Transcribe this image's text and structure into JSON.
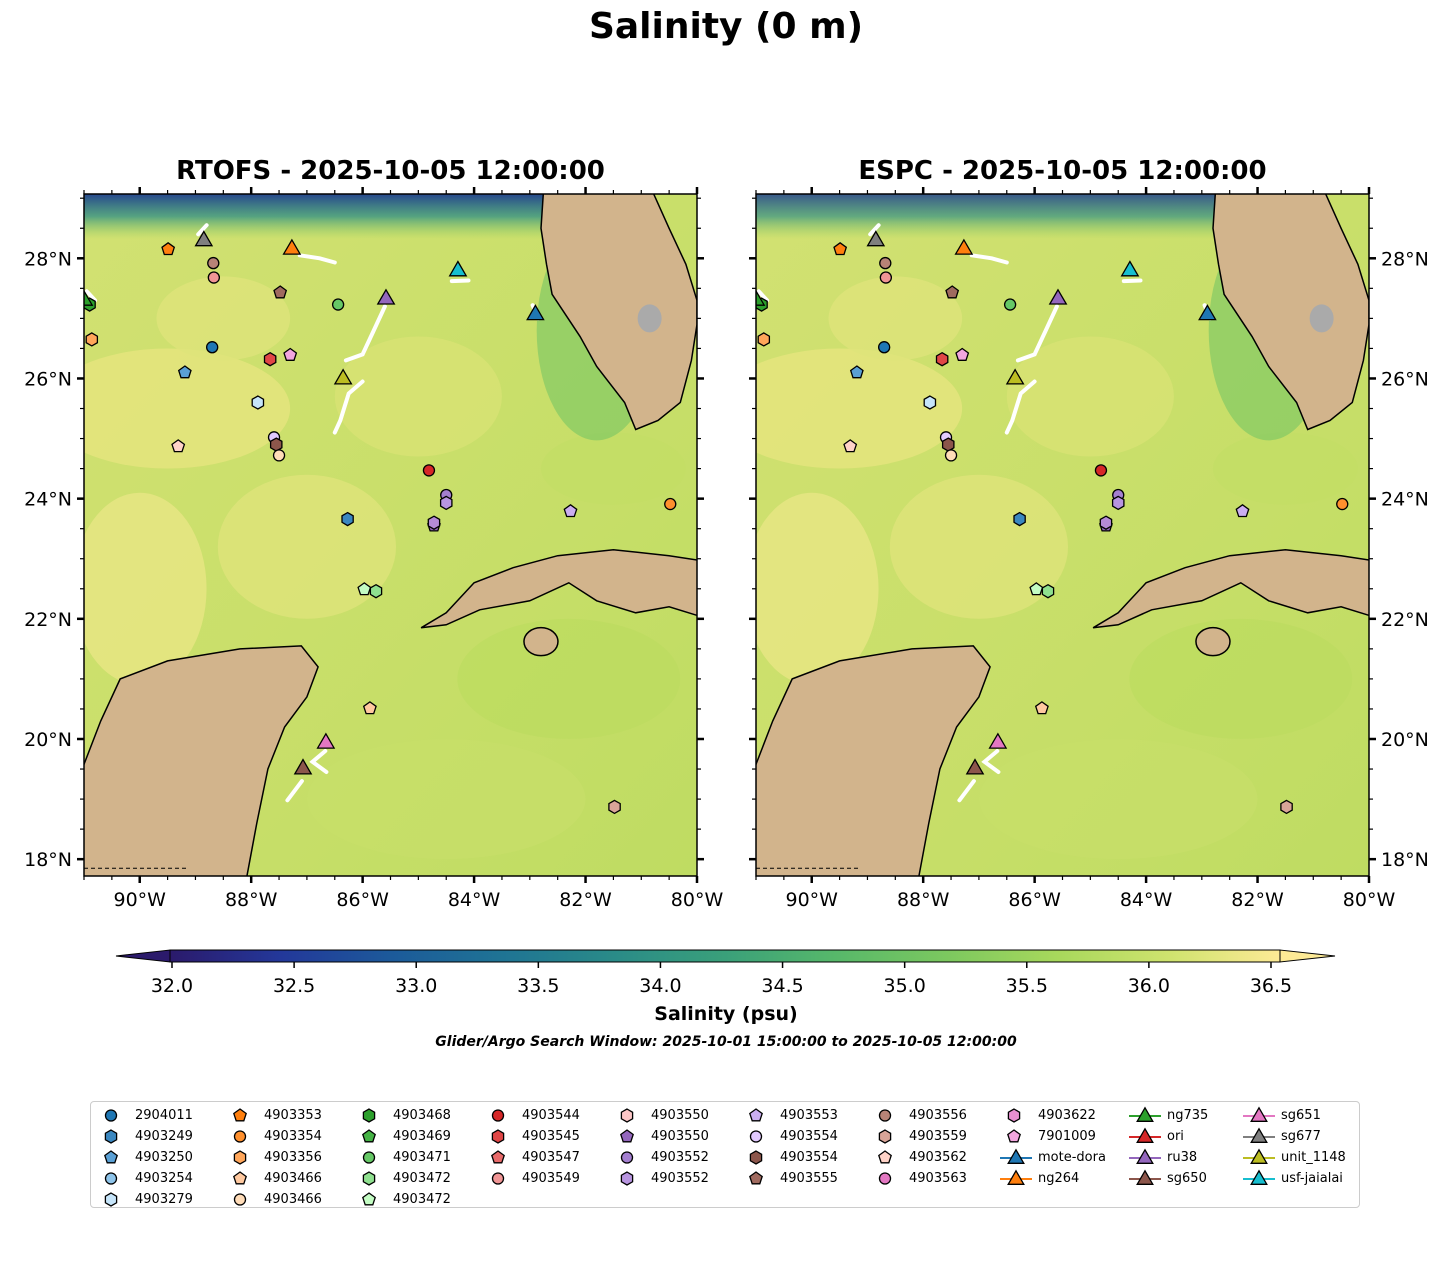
{
  "figure_title": "Salinity (0 m)",
  "chart_data": {
    "type": "map",
    "panels": [
      {
        "title": "RTOFS - 2025-10-05 12:00:00",
        "lat_label_side": "left"
      },
      {
        "title": "ESPC - 2025-10-05 12:00:00",
        "lat_label_side": "right"
      }
    ],
    "lon_range": [
      -91,
      -80
    ],
    "lat_range": [
      17.72,
      29.07
    ],
    "lon_ticks": [
      -90,
      -88,
      -86,
      -84,
      -82,
      -80
    ],
    "lon_tick_labels": [
      "90°W",
      "88°W",
      "86°W",
      "84°W",
      "82°W",
      "80°W"
    ],
    "lat_ticks": [
      18,
      20,
      22,
      24,
      26,
      28
    ],
    "lat_tick_labels": [
      "18°N",
      "20°N",
      "22°N",
      "24°N",
      "26°N",
      "28°N"
    ],
    "colorbar": {
      "label": "Salinity (psu)",
      "range": [
        32.0,
        36.5
      ],
      "extend": "both",
      "ticks": [
        32.0,
        32.5,
        33.0,
        33.5,
        34.0,
        34.5,
        35.0,
        35.5,
        36.0,
        36.5
      ],
      "tick_labels": [
        "32.0",
        "32.5",
        "33.0",
        "33.5",
        "34.0",
        "34.5",
        "35.0",
        "35.5",
        "36.0",
        "36.5"
      ],
      "colors": [
        "#2b1a6b",
        "#23389a",
        "#1c5a9a",
        "#1f7494",
        "#2a8b88",
        "#3aa07a",
        "#57b86a",
        "#7cc85f",
        "#a8d85c",
        "#cfe36e",
        "#fdea96"
      ]
    },
    "search_window_note": "Glider/Argo Search Window: 2025-10-01 15:00:00 to 2025-10-05 12:00:00",
    "markers": [
      {
        "label": "2904011",
        "shape": "circle",
        "color": "#1f77b4",
        "lon": -88.7,
        "lat": 26.52
      },
      {
        "label": "4903249",
        "shape": "hexagon",
        "color": "#3a87c0",
        "lon": -86.27,
        "lat": 23.66
      },
      {
        "label": "4903250",
        "shape": "pentagon",
        "color": "#5aa0d5",
        "lon": -89.19,
        "lat": 26.1
      },
      {
        "label": "4903279",
        "shape": "hexagon",
        "color": "#c6e5fa",
        "lon": -87.88,
        "lat": 25.6
      },
      {
        "label": "4903353",
        "shape": "pentagon",
        "color": "#ff7f0e",
        "lon": -89.49,
        "lat": 28.15
      },
      {
        "label": "4903354",
        "shape": "circle",
        "color": "#ff902e",
        "lon": -80.48,
        "lat": 23.91
      },
      {
        "label": "4903356",
        "shape": "hexagon",
        "color": "#ffa65a",
        "lon": -90.86,
        "lat": 26.65
      },
      {
        "label": "4903466",
        "shape": "pentagon",
        "color": "#ffc9a0",
        "lon": -85.87,
        "lat": 20.51
      },
      {
        "label": "4903468",
        "shape": "hexagon",
        "color": "#2ca02c",
        "lon": -90.9,
        "lat": 27.23
      },
      {
        "label": "4903471",
        "shape": "circle",
        "color": "#66c866",
        "lon": -86.44,
        "lat": 27.23
      },
      {
        "label": "4903472",
        "shape": "hexagon",
        "color": "#8fe08f",
        "lon": -85.76,
        "lat": 22.46
      },
      {
        "label": "4903472",
        "shape": "pentagon",
        "color": "#c3fcc3",
        "lon": -85.97,
        "lat": 22.49
      },
      {
        "label": "4903544",
        "shape": "circle",
        "color": "#d62728",
        "lon": -84.81,
        "lat": 24.47
      },
      {
        "label": "4903545",
        "shape": "hexagon",
        "color": "#e04646",
        "lon": -87.66,
        "lat": 26.32
      },
      {
        "label": "4903549",
        "shape": "circle",
        "color": "#f09595",
        "lon": -88.67,
        "lat": 27.68
      },
      {
        "label": "4903554",
        "shape": "circle",
        "color": "#e2caff",
        "lon": -87.59,
        "lat": 25.02
      },
      {
        "label": "4903554",
        "shape": "hexagon",
        "color": "#8c564b",
        "lon": -87.55,
        "lat": 24.9
      },
      {
        "label": "4903466",
        "shape": "circle",
        "color": "#ffdcb8",
        "lon": -87.5,
        "lat": 24.72
      },
      {
        "label": "4903550",
        "shape": "pentagon",
        "color": "#9467bd",
        "lon": -84.72,
        "lat": 23.55
      },
      {
        "label": "4903552",
        "shape": "circle",
        "color": "#a47fd0",
        "lon": -84.5,
        "lat": 24.06
      },
      {
        "label": "4903552",
        "shape": "hexagon",
        "color": "#b895e0",
        "lon": -84.5,
        "lat": 23.93
      },
      {
        "label": "4903553",
        "shape": "pentagon",
        "color": "#cbaef0",
        "lon": -82.27,
        "lat": 23.79
      },
      {
        "label": "4903555",
        "shape": "pentagon",
        "color": "#a06a5f",
        "lon": -87.48,
        "lat": 27.43
      },
      {
        "label": "4903556",
        "shape": "circle",
        "color": "#b88377",
        "lon": -88.68,
        "lat": 27.92
      },
      {
        "label": "4903559",
        "shape": "hexagon",
        "color": "#d9a598",
        "lon": -81.48,
        "lat": 18.87
      },
      {
        "label": "4903562",
        "shape": "pentagon",
        "color": "#ffd3c8",
        "lon": -89.31,
        "lat": 24.87
      },
      {
        "label": "4903622",
        "shape": "hexagon",
        "color": "#b58ad6",
        "lon": -84.72,
        "lat": 23.6
      },
      {
        "label": "7901009",
        "shape": "pentagon",
        "color": "#f2a6de",
        "lon": -87.3,
        "lat": 26.39
      },
      {
        "label": "ng264",
        "shape": "triangle",
        "color": "#ff7f0e",
        "lon": -87.27,
        "lat": 28.18
      },
      {
        "label": "sg677",
        "shape": "triangle",
        "color": "#7f7f7f",
        "lon": -88.85,
        "lat": 28.32
      },
      {
        "label": "ru38",
        "shape": "triangle",
        "color": "#9467bd",
        "lon": -85.58,
        "lat": 27.35
      },
      {
        "label": "unit_1148",
        "shape": "triangle",
        "color": "#bcbd22",
        "lon": -86.35,
        "lat": 26.02
      },
      {
        "label": "usf-jaialai",
        "shape": "triangle",
        "color": "#17becf",
        "lon": -84.29,
        "lat": 27.82
      },
      {
        "label": "mote-dora",
        "shape": "triangle",
        "color": "#1f77b4",
        "lon": -82.9,
        "lat": 27.09
      },
      {
        "label": "sg651",
        "shape": "triangle",
        "color": "#e377c2",
        "lon": -86.66,
        "lat": 19.96
      },
      {
        "label": "sg650",
        "shape": "triangle",
        "color": "#8c564b",
        "lon": -87.07,
        "lat": 19.53
      },
      {
        "label": "ng735",
        "shape": "triangle",
        "color": "#2ca02c",
        "lon": -91.0,
        "lat": 27.33
      }
    ],
    "glider_tracks": [
      [
        [
          -87.13,
          28.05
        ],
        [
          -86.77,
          28.0
        ],
        [
          -86.5,
          27.93
        ]
      ],
      [
        [
          -85.6,
          27.2
        ],
        [
          -85.8,
          26.8
        ],
        [
          -86.0,
          26.4
        ],
        [
          -86.3,
          26.3
        ]
      ],
      [
        [
          -86.0,
          25.95
        ],
        [
          -86.25,
          25.75
        ],
        [
          -86.4,
          25.3
        ],
        [
          -86.5,
          25.1
        ]
      ],
      [
        [
          -84.4,
          27.62
        ],
        [
          -84.1,
          27.63
        ]
      ],
      [
        [
          -82.95,
          27.22
        ],
        [
          -82.85,
          27.0
        ]
      ],
      [
        [
          -86.67,
          19.8
        ],
        [
          -86.9,
          19.62
        ],
        [
          -86.65,
          19.45
        ]
      ],
      [
        [
          -87.09,
          19.3
        ],
        [
          -87.35,
          18.98
        ]
      ],
      [
        [
          -88.95,
          28.4
        ],
        [
          -88.8,
          28.55
        ]
      ],
      [
        [
          -90.95,
          27.45
        ],
        [
          -90.8,
          27.3
        ]
      ]
    ]
  },
  "legend": {
    "columns": [
      [
        {
          "label": "2904011",
          "shape": "circle",
          "color": "#1f77b4"
        },
        {
          "label": "4903249",
          "shape": "hexagon",
          "color": "#3a87c0"
        },
        {
          "label": "4903250",
          "shape": "pentagon",
          "color": "#5aa0d5"
        },
        {
          "label": "4903254",
          "shape": "circle",
          "color": "#8ec4ea"
        },
        {
          "label": "4903279",
          "shape": "hexagon",
          "color": "#c6e5fa"
        }
      ],
      [
        {
          "label": "4903353",
          "shape": "pentagon",
          "color": "#ff7f0e"
        },
        {
          "label": "4903354",
          "shape": "circle",
          "color": "#ff902e"
        },
        {
          "label": "4903356",
          "shape": "hexagon",
          "color": "#ffa65a"
        },
        {
          "label": "4903466",
          "shape": "pentagon",
          "color": "#ffc9a0"
        },
        {
          "label": "4903466",
          "shape": "circle",
          "color": "#ffdcb8"
        }
      ],
      [
        {
          "label": "4903468",
          "shape": "hexagon",
          "color": "#2ca02c"
        },
        {
          "label": "4903469",
          "shape": "pentagon",
          "color": "#45b345"
        },
        {
          "label": "4903471",
          "shape": "circle",
          "color": "#66c866"
        },
        {
          "label": "4903472",
          "shape": "hexagon",
          "color": "#8fe08f"
        },
        {
          "label": "4903472",
          "shape": "pentagon",
          "color": "#c3fcc3"
        }
      ],
      [
        {
          "label": "4903544",
          "shape": "circle",
          "color": "#d62728"
        },
        {
          "label": "4903545",
          "shape": "hexagon",
          "color": "#e04646"
        },
        {
          "label": "4903547",
          "shape": "pentagon",
          "color": "#e86a6a"
        },
        {
          "label": "4903549",
          "shape": "circle",
          "color": "#f09595"
        }
      ],
      [
        {
          "label": "4903550",
          "shape": "hexagon",
          "color": "#fcc6c6"
        },
        {
          "label": "4903550",
          "shape": "pentagon",
          "color": "#9467bd"
        },
        {
          "label": "4903552",
          "shape": "circle",
          "color": "#a47fd0"
        },
        {
          "label": "4903552",
          "shape": "hexagon",
          "color": "#b895e0"
        }
      ],
      [
        {
          "label": "4903553",
          "shape": "pentagon",
          "color": "#cbaef0"
        },
        {
          "label": "4903554",
          "shape": "circle",
          "color": "#e2caff"
        },
        {
          "label": "4903554",
          "shape": "hexagon",
          "color": "#8c564b"
        },
        {
          "label": "4903555",
          "shape": "pentagon",
          "color": "#a06a5f"
        }
      ],
      [
        {
          "label": "4903556",
          "shape": "circle",
          "color": "#b88377"
        },
        {
          "label": "4903559",
          "shape": "hexagon",
          "color": "#d9a598"
        },
        {
          "label": "4903562",
          "shape": "pentagon",
          "color": "#ffd3c8"
        },
        {
          "label": "4903563",
          "shape": "circle",
          "color": "#e377c2"
        }
      ],
      [
        {
          "label": "4903622",
          "shape": "hexagon",
          "color": "#e88fd0"
        },
        {
          "label": "7901009",
          "shape": "pentagon",
          "color": "#f2a6de"
        },
        {
          "label": "mote-dora",
          "shape": "triangle",
          "color": "#1f77b4"
        },
        {
          "label": "ng264",
          "shape": "triangle",
          "color": "#ff7f0e"
        }
      ],
      [
        {
          "label": "ng735",
          "shape": "triangle",
          "color": "#2ca02c"
        },
        {
          "label": "ori",
          "shape": "triangle",
          "color": "#d62728"
        },
        {
          "label": "ru38",
          "shape": "triangle",
          "color": "#9467bd"
        },
        {
          "label": "sg650",
          "shape": "triangle",
          "color": "#8c564b"
        }
      ],
      [
        {
          "label": "sg651",
          "shape": "triangle",
          "color": "#e377c2"
        },
        {
          "label": "sg677",
          "shape": "triangle",
          "color": "#7f7f7f"
        },
        {
          "label": "unit_1148",
          "shape": "triangle",
          "color": "#bcbd22"
        },
        {
          "label": "usf-jaialai",
          "shape": "triangle",
          "color": "#17becf"
        }
      ]
    ]
  }
}
